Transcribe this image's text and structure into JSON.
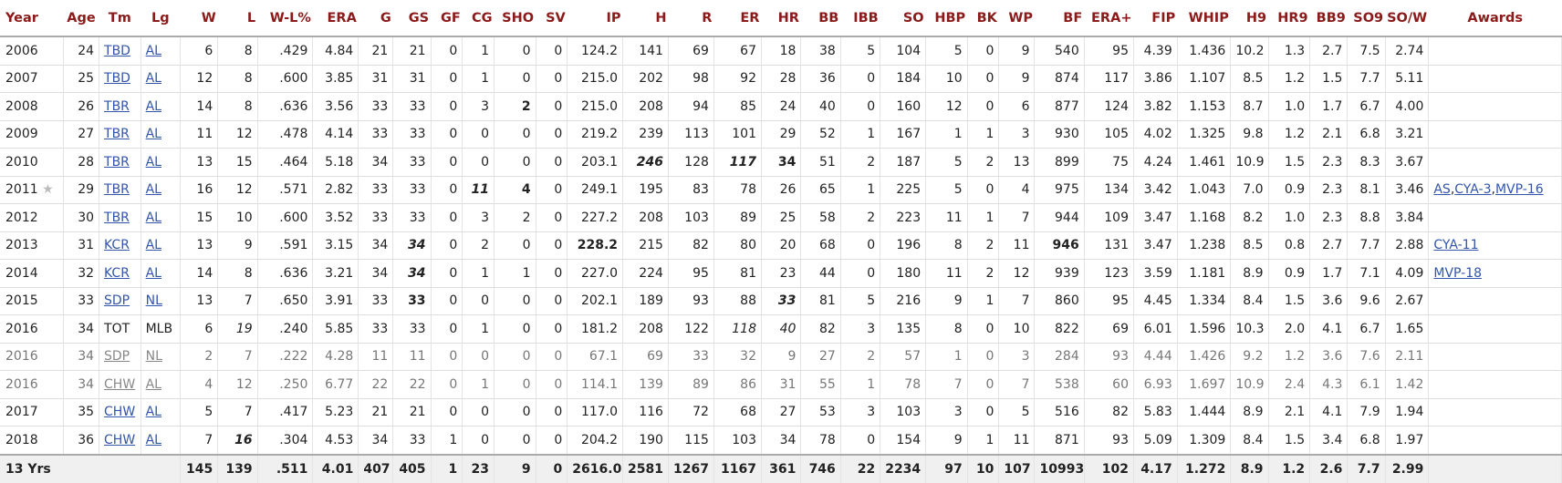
{
  "table": {
    "columns": [
      "Year",
      "Age",
      "Tm",
      "Lg",
      "W",
      "L",
      "W-L%",
      "ERA",
      "G",
      "GS",
      "GF",
      "CG",
      "SHO",
      "SV",
      "IP",
      "H",
      "R",
      "ER",
      "HR",
      "BB",
      "IBB",
      "SO",
      "HBP",
      "BK",
      "WP",
      "BF",
      "ERA+",
      "FIP",
      "WHIP",
      "H9",
      "HR9",
      "BB9",
      "SO9",
      "SO/W",
      "Awards"
    ],
    "rows": [
      {
        "year": "2006",
        "star": "",
        "age": "24",
        "tm": "TBD",
        "lg": "AL",
        "partial": false,
        "link_tm": true,
        "link_lg": true,
        "cells": [
          "6",
          "8",
          ".429",
          "4.84",
          "21",
          "21",
          "0",
          "1",
          "0",
          "0",
          "124.2",
          "141",
          "69",
          "67",
          "18",
          "38",
          "5",
          "104",
          "5",
          "0",
          "9",
          "540",
          "95",
          "4.39",
          "1.436",
          "10.2",
          "1.3",
          "2.7",
          "7.5",
          "2.74"
        ],
        "style": {},
        "awards": []
      },
      {
        "year": "2007",
        "star": "",
        "age": "25",
        "tm": "TBD",
        "lg": "AL",
        "partial": false,
        "link_tm": true,
        "link_lg": true,
        "cells": [
          "12",
          "8",
          ".600",
          "3.85",
          "31",
          "31",
          "0",
          "1",
          "0",
          "0",
          "215.0",
          "202",
          "98",
          "92",
          "28",
          "36",
          "0",
          "184",
          "10",
          "0",
          "9",
          "874",
          "117",
          "3.86",
          "1.107",
          "8.5",
          "1.2",
          "1.5",
          "7.7",
          "5.11"
        ],
        "style": {},
        "awards": []
      },
      {
        "year": "2008",
        "star": "",
        "age": "26",
        "tm": "TBR",
        "lg": "AL",
        "partial": false,
        "link_tm": true,
        "link_lg": true,
        "cells": [
          "14",
          "8",
          ".636",
          "3.56",
          "33",
          "33",
          "0",
          "3",
          "2",
          "0",
          "215.0",
          "208",
          "94",
          "85",
          "24",
          "40",
          "0",
          "160",
          "12",
          "0",
          "6",
          "877",
          "124",
          "3.82",
          "1.153",
          "8.7",
          "1.0",
          "1.7",
          "6.7",
          "4.00"
        ],
        "style": {
          "SHO": "b"
        },
        "awards": []
      },
      {
        "year": "2009",
        "star": "",
        "age": "27",
        "tm": "TBR",
        "lg": "AL",
        "partial": false,
        "link_tm": true,
        "link_lg": true,
        "cells": [
          "11",
          "12",
          ".478",
          "4.14",
          "33",
          "33",
          "0",
          "0",
          "0",
          "0",
          "219.2",
          "239",
          "113",
          "101",
          "29",
          "52",
          "1",
          "167",
          "1",
          "1",
          "3",
          "930",
          "105",
          "4.02",
          "1.325",
          "9.8",
          "1.2",
          "2.1",
          "6.8",
          "3.21"
        ],
        "style": {},
        "awards": []
      },
      {
        "year": "2010",
        "star": "",
        "age": "28",
        "tm": "TBR",
        "lg": "AL",
        "partial": false,
        "link_tm": true,
        "link_lg": true,
        "cells": [
          "13",
          "15",
          ".464",
          "5.18",
          "34",
          "33",
          "0",
          "0",
          "0",
          "0",
          "203.1",
          "246",
          "128",
          "117",
          "34",
          "51",
          "2",
          "187",
          "5",
          "2",
          "13",
          "899",
          "75",
          "4.24",
          "1.461",
          "10.9",
          "1.5",
          "2.3",
          "8.3",
          "3.67"
        ],
        "style": {
          "H": "bi",
          "ER": "bi",
          "HR": "b"
        },
        "awards": []
      },
      {
        "year": "2011",
        "star": "★",
        "age": "29",
        "tm": "TBR",
        "lg": "AL",
        "partial": false,
        "link_tm": true,
        "link_lg": true,
        "cells": [
          "16",
          "12",
          ".571",
          "2.82",
          "33",
          "33",
          "0",
          "11",
          "4",
          "0",
          "249.1",
          "195",
          "83",
          "78",
          "26",
          "65",
          "1",
          "225",
          "5",
          "0",
          "4",
          "975",
          "134",
          "3.42",
          "1.043",
          "7.0",
          "0.9",
          "2.3",
          "8.1",
          "3.46"
        ],
        "style": {
          "CG": "bi",
          "SHO": "b"
        },
        "awards": [
          "AS",
          "CYA-3",
          "MVP-16"
        ]
      },
      {
        "year": "2012",
        "star": "",
        "age": "30",
        "tm": "TBR",
        "lg": "AL",
        "partial": false,
        "link_tm": true,
        "link_lg": true,
        "cells": [
          "15",
          "10",
          ".600",
          "3.52",
          "33",
          "33",
          "0",
          "3",
          "2",
          "0",
          "227.2",
          "208",
          "103",
          "89",
          "25",
          "58",
          "2",
          "223",
          "11",
          "1",
          "7",
          "944",
          "109",
          "3.47",
          "1.168",
          "8.2",
          "1.0",
          "2.3",
          "8.8",
          "3.84"
        ],
        "style": {},
        "awards": []
      },
      {
        "year": "2013",
        "star": "",
        "age": "31",
        "tm": "KCR",
        "lg": "AL",
        "partial": false,
        "link_tm": true,
        "link_lg": true,
        "cells": [
          "13",
          "9",
          ".591",
          "3.15",
          "34",
          "34",
          "0",
          "2",
          "0",
          "0",
          "228.2",
          "215",
          "82",
          "80",
          "20",
          "68",
          "0",
          "196",
          "8",
          "2",
          "11",
          "946",
          "131",
          "3.47",
          "1.238",
          "8.5",
          "0.8",
          "2.7",
          "7.7",
          "2.88"
        ],
        "style": {
          "GS": "bi",
          "IP": "b",
          "BF": "b"
        },
        "awards": [
          "CYA-11"
        ]
      },
      {
        "year": "2014",
        "star": "",
        "age": "32",
        "tm": "KCR",
        "lg": "AL",
        "partial": false,
        "link_tm": true,
        "link_lg": true,
        "cells": [
          "14",
          "8",
          ".636",
          "3.21",
          "34",
          "34",
          "0",
          "1",
          "1",
          "0",
          "227.0",
          "224",
          "95",
          "81",
          "23",
          "44",
          "0",
          "180",
          "11",
          "2",
          "12",
          "939",
          "123",
          "3.59",
          "1.181",
          "8.9",
          "0.9",
          "1.7",
          "7.1",
          "4.09"
        ],
        "style": {
          "GS": "bi"
        },
        "awards": [
          "MVP-18"
        ]
      },
      {
        "year": "2015",
        "star": "",
        "age": "33",
        "tm": "SDP",
        "lg": "NL",
        "partial": false,
        "link_tm": true,
        "link_lg": true,
        "cells": [
          "13",
          "7",
          ".650",
          "3.91",
          "33",
          "33",
          "0",
          "0",
          "0",
          "0",
          "202.1",
          "189",
          "93",
          "88",
          "33",
          "81",
          "5",
          "216",
          "9",
          "1",
          "7",
          "860",
          "95",
          "4.45",
          "1.334",
          "8.4",
          "1.5",
          "3.6",
          "9.6",
          "2.67"
        ],
        "style": {
          "GS": "b",
          "HR": "bi"
        },
        "awards": []
      },
      {
        "year": "2016",
        "star": "",
        "age": "34",
        "tm": "TOT",
        "lg": "MLB",
        "partial": false,
        "link_tm": false,
        "link_lg": false,
        "cells": [
          "6",
          "19",
          ".240",
          "5.85",
          "33",
          "33",
          "0",
          "1",
          "0",
          "0",
          "181.2",
          "208",
          "122",
          "118",
          "40",
          "82",
          "3",
          "135",
          "8",
          "0",
          "10",
          "822",
          "69",
          "6.01",
          "1.596",
          "10.3",
          "2.0",
          "4.1",
          "6.7",
          "1.65"
        ],
        "style": {
          "L": "i",
          "ER": "i",
          "HR": "i"
        },
        "awards": []
      },
      {
        "year": "2016",
        "star": "",
        "age": "34",
        "tm": "SDP",
        "lg": "NL",
        "partial": true,
        "link_tm": true,
        "link_lg": true,
        "cells": [
          "2",
          "7",
          ".222",
          "4.28",
          "11",
          "11",
          "0",
          "0",
          "0",
          "0",
          "67.1",
          "69",
          "33",
          "32",
          "9",
          "27",
          "2",
          "57",
          "1",
          "0",
          "3",
          "284",
          "93",
          "4.44",
          "1.426",
          "9.2",
          "1.2",
          "3.6",
          "7.6",
          "2.11"
        ],
        "style": {},
        "awards": []
      },
      {
        "year": "2016",
        "star": "",
        "age": "34",
        "tm": "CHW",
        "lg": "AL",
        "partial": true,
        "link_tm": true,
        "link_lg": true,
        "cells": [
          "4",
          "12",
          ".250",
          "6.77",
          "22",
          "22",
          "0",
          "1",
          "0",
          "0",
          "114.1",
          "139",
          "89",
          "86",
          "31",
          "55",
          "1",
          "78",
          "7",
          "0",
          "7",
          "538",
          "60",
          "6.93",
          "1.697",
          "10.9",
          "2.4",
          "4.3",
          "6.1",
          "1.42"
        ],
        "style": {},
        "awards": []
      },
      {
        "year": "2017",
        "star": "",
        "age": "35",
        "tm": "CHW",
        "lg": "AL",
        "partial": false,
        "link_tm": true,
        "link_lg": true,
        "cells": [
          "5",
          "7",
          ".417",
          "5.23",
          "21",
          "21",
          "0",
          "0",
          "0",
          "0",
          "117.0",
          "116",
          "72",
          "68",
          "27",
          "53",
          "3",
          "103",
          "3",
          "0",
          "5",
          "516",
          "82",
          "5.83",
          "1.444",
          "8.9",
          "2.1",
          "4.1",
          "7.9",
          "1.94"
        ],
        "style": {},
        "awards": []
      },
      {
        "year": "2018",
        "star": "",
        "age": "36",
        "tm": "CHW",
        "lg": "AL",
        "partial": false,
        "link_tm": true,
        "link_lg": true,
        "cells": [
          "7",
          "16",
          ".304",
          "4.53",
          "34",
          "33",
          "1",
          "0",
          "0",
          "0",
          "204.2",
          "190",
          "115",
          "103",
          "34",
          "78",
          "0",
          "154",
          "9",
          "1",
          "11",
          "871",
          "93",
          "5.09",
          "1.309",
          "8.4",
          "1.5",
          "3.4",
          "6.8",
          "1.97"
        ],
        "style": {
          "L": "bi"
        },
        "awards": []
      }
    ],
    "footer": {
      "label": "13 Yrs",
      "cells": [
        "145",
        "139",
        ".511",
        "4.01",
        "407",
        "405",
        "1",
        "23",
        "9",
        "0",
        "2616.0",
        "2581",
        "1267",
        "1167",
        "361",
        "746",
        "22",
        "2234",
        "97",
        "10",
        "107",
        "10993",
        "102",
        "4.17",
        "1.272",
        "8.9",
        "1.2",
        "2.6",
        "7.7",
        "2.99"
      ]
    }
  },
  "colors": {
    "header": "#8b1a1a",
    "link": "#3355aa"
  }
}
